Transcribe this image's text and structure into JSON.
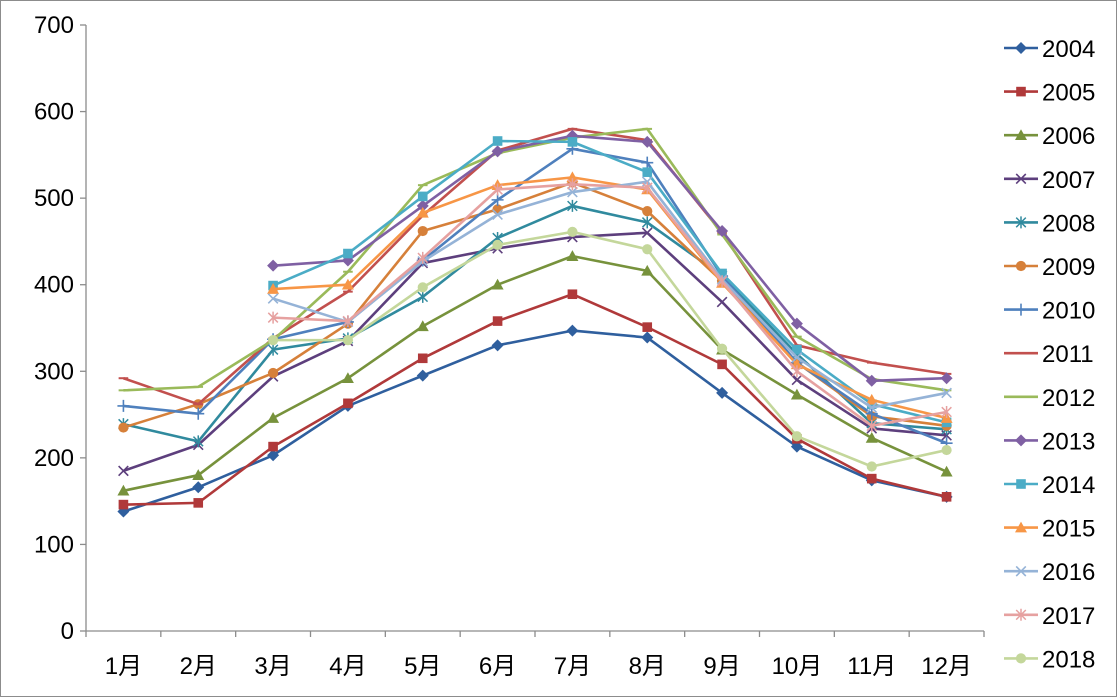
{
  "chart_data": {
    "type": "line",
    "title": "",
    "xlabel": "",
    "ylabel": "",
    "ylim": [
      0,
      700
    ],
    "yticks": [
      0,
      100,
      200,
      300,
      400,
      500,
      600,
      700
    ],
    "categories": [
      "1月",
      "2月",
      "3月",
      "4月",
      "5月",
      "6月",
      "7月",
      "8月",
      "9月",
      "10月",
      "11月",
      "12月"
    ],
    "grid": false,
    "legend_position": "right",
    "series": [
      {
        "name": "2004",
        "color": "#2f5f9e",
        "marker": "diamond",
        "values": [
          138,
          166,
          203,
          260,
          295,
          330,
          347,
          339,
          275,
          213,
          174,
          155
        ]
      },
      {
        "name": "2005",
        "color": "#b0393a",
        "marker": "square",
        "values": [
          146,
          148,
          213,
          263,
          315,
          358,
          389,
          351,
          308,
          222,
          176,
          155
        ]
      },
      {
        "name": "2006",
        "color": "#77923c",
        "marker": "triangle",
        "values": [
          162,
          180,
          246,
          292,
          352,
          400,
          433,
          416,
          325,
          273,
          223,
          184
        ]
      },
      {
        "name": "2007",
        "color": "#5d3f7d",
        "marker": "x",
        "values": [
          185,
          215,
          294,
          335,
          425,
          442,
          455,
          460,
          380,
          290,
          234,
          226
        ]
      },
      {
        "name": "2008",
        "color": "#308a9e",
        "marker": "star",
        "values": [
          239,
          219,
          325,
          338,
          386,
          454,
          491,
          472,
          410,
          320,
          240,
          233
        ]
      },
      {
        "name": "2009",
        "color": "#d6803a",
        "marker": "circle",
        "values": [
          235,
          262,
          298,
          355,
          462,
          487,
          518,
          485,
          404,
          310,
          248,
          237
        ]
      },
      {
        "name": "2010",
        "color": "#4f80bd",
        "marker": "plus",
        "values": [
          260,
          251,
          337,
          357,
          428,
          498,
          557,
          541,
          410,
          310,
          251,
          217
        ]
      },
      {
        "name": "2011",
        "color": "#c2504e",
        "marker": "dash",
        "values": [
          292,
          262,
          338,
          392,
          480,
          555,
          580,
          567,
          460,
          330,
          310,
          297
        ]
      },
      {
        "name": "2012",
        "color": "#9aba5a",
        "marker": "dash",
        "values": [
          278,
          282,
          336,
          415,
          515,
          552,
          570,
          580,
          458,
          340,
          291,
          278
        ]
      },
      {
        "name": "2013",
        "color": "#7f60a3",
        "marker": "diamond",
        "values": [
          null,
          null,
          422,
          428,
          491,
          554,
          572,
          565,
          462,
          355,
          289,
          292
        ]
      },
      {
        "name": "2014",
        "color": "#4bacc6",
        "marker": "square",
        "values": [
          null,
          null,
          399,
          436,
          502,
          566,
          565,
          530,
          413,
          325,
          262,
          241
        ]
      },
      {
        "name": "2015",
        "color": "#f79646",
        "marker": "triangle",
        "values": [
          null,
          null,
          395,
          400,
          483,
          515,
          524,
          510,
          402,
          308,
          267,
          246
        ]
      },
      {
        "name": "2016",
        "color": "#95b3d7",
        "marker": "x",
        "values": [
          null,
          null,
          384,
          357,
          427,
          481,
          507,
          519,
          406,
          316,
          258,
          275
        ]
      },
      {
        "name": "2017",
        "color": "#e6a1a0",
        "marker": "star",
        "values": [
          null,
          null,
          362,
          358,
          431,
          510,
          516,
          512,
          404,
          300,
          237,
          253
        ]
      },
      {
        "name": "2018",
        "color": "#c4d79b",
        "marker": "circle",
        "values": [
          null,
          null,
          336,
          336,
          397,
          446,
          461,
          441,
          326,
          225,
          190,
          209
        ]
      }
    ]
  }
}
